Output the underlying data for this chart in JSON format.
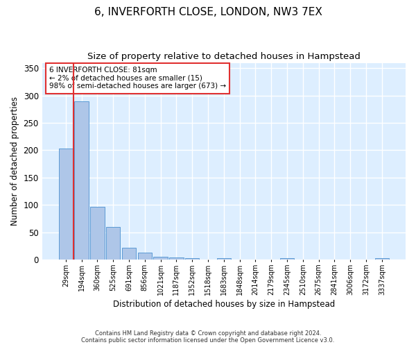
{
  "title": "6, INVERFORTH CLOSE, LONDON, NW3 7EX",
  "subtitle": "Size of property relative to detached houses in Hampstead",
  "xlabel": "Distribution of detached houses by size in Hampstead",
  "ylabel": "Number of detached properties",
  "bar_labels": [
    "29sqm",
    "194sqm",
    "360sqm",
    "525sqm",
    "691sqm",
    "856sqm",
    "1021sqm",
    "1187sqm",
    "1352sqm",
    "1518sqm",
    "1683sqm",
    "1848sqm",
    "2014sqm",
    "2179sqm",
    "2345sqm",
    "2510sqm",
    "2675sqm",
    "2841sqm",
    "3006sqm",
    "3172sqm",
    "3337sqm"
  ],
  "bar_values": [
    203,
    290,
    97,
    59,
    22,
    12,
    5,
    4,
    3,
    0,
    2,
    0,
    0,
    0,
    2,
    0,
    0,
    0,
    0,
    0,
    2
  ],
  "bar_color": "#aec6e8",
  "bar_edge_color": "#5b9bd5",
  "marker_line_color": "#e03030",
  "annotation_text": "6 INVERFORTH CLOSE: 81sqm\n← 2% of detached houses are smaller (15)\n98% of semi-detached houses are larger (673) →",
  "annotation_box_color": "#ffffff",
  "annotation_box_edge": "#e03030",
  "ylim": [
    0,
    360
  ],
  "yticks": [
    0,
    50,
    100,
    150,
    200,
    250,
    300,
    350
  ],
  "background_color": "#ddeeff",
  "grid_color": "#ffffff",
  "footer": "Contains HM Land Registry data © Crown copyright and database right 2024.\nContains public sector information licensed under the Open Government Licence v3.0.",
  "title_fontsize": 11,
  "subtitle_fontsize": 9.5
}
